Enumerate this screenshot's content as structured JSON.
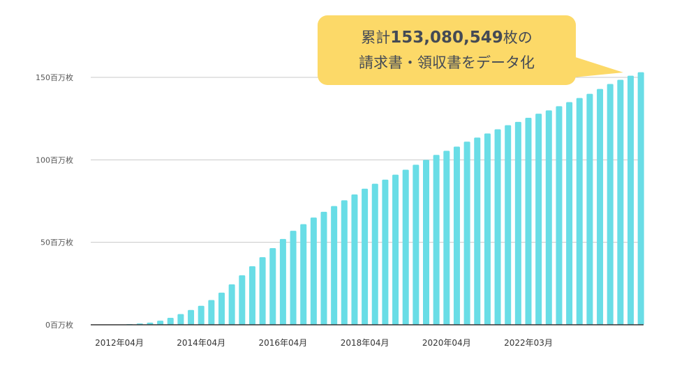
{
  "chart_data": {
    "type": "bar",
    "title_line1_prefix": "累計",
    "total": "153,080,549",
    "title_line1_suffix": "枚の",
    "title_line2": "請求書・領収書をデータ化",
    "y_tick_labels": [
      "0百万枚",
      "50百万枚",
      "100百万枚",
      "150百万枚"
    ],
    "y_ticks": [
      0,
      50,
      100,
      150
    ],
    "ylim": [
      0,
      150
    ],
    "unit": "百万枚",
    "x_tick_labels": [
      "2012年04月",
      "2014年04月",
      "2016年04月",
      "2018年04月",
      "2020年04月",
      "2022年03月"
    ],
    "x_tick_category_index": [
      0,
      8,
      16,
      24,
      32,
      40
    ],
    "values": [
      0.2,
      0.4,
      0.8,
      1.3,
      2.5,
      4.2,
      6.5,
      9.0,
      11.5,
      15.0,
      19.5,
      24.5,
      30.0,
      35.5,
      41.0,
      46.5,
      52.0,
      57.0,
      61.0,
      65.0,
      68.5,
      72.0,
      75.5,
      79.0,
      82.5,
      85.5,
      88.0,
      91.0,
      94.0,
      97.0,
      100.0,
      103.0,
      105.5,
      108.0,
      111.0,
      113.5,
      116.0,
      118.5,
      121.0,
      123.0,
      125.5,
      128.0,
      130.0,
      132.5,
      135.0,
      137.5,
      140.0,
      143.0,
      146.0,
      148.5,
      151.0,
      153.1
    ],
    "grid": true,
    "colors": {
      "bar": "#69dde6",
      "grid": "#c8c8c8",
      "axis": "#333333",
      "callout": "#fcd968",
      "text": "#444a55"
    }
  }
}
